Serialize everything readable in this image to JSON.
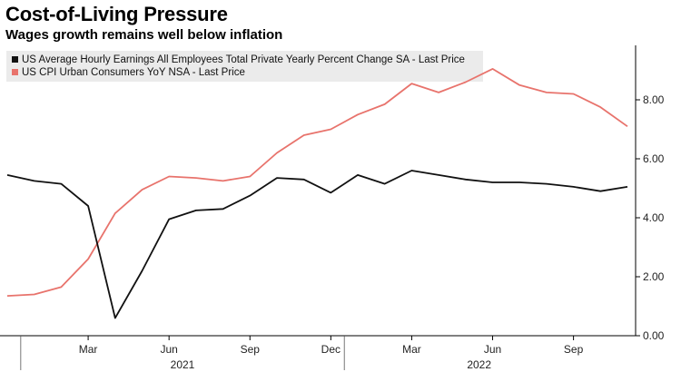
{
  "header": {
    "title": "Cost-of-Living Pressure",
    "subtitle": "Wages growth remains well below inflation"
  },
  "colors": {
    "wages": "#111111",
    "cpi": "#e8736c",
    "legend_bg": "#ebebeb",
    "axis": "#000000"
  },
  "chart_data": {
    "type": "line",
    "title": "Cost-of-Living Pressure",
    "subtitle": "Wages growth remains well below inflation",
    "x": [
      "2020-12",
      "2021-01",
      "2021-02",
      "2021-03",
      "2021-04",
      "2021-05",
      "2021-06",
      "2021-07",
      "2021-08",
      "2021-09",
      "2021-10",
      "2021-11",
      "2021-12",
      "2022-01",
      "2022-02",
      "2022-03",
      "2022-04",
      "2022-05",
      "2022-06",
      "2022-07",
      "2022-08",
      "2022-09",
      "2022-10",
      "2022-11"
    ],
    "series": [
      {
        "name": "US Average Hourly Earnings All Employees Total Private Yearly Percent Change SA - Last Price",
        "color": "#111111",
        "values": [
          5.45,
          5.25,
          5.15,
          4.4,
          0.6,
          2.2,
          3.95,
          4.25,
          4.3,
          4.75,
          5.35,
          5.3,
          4.85,
          5.45,
          5.15,
          5.6,
          5.45,
          5.3,
          5.2,
          5.2,
          5.15,
          5.05,
          4.9,
          5.05
        ]
      },
      {
        "name": "US CPI Urban Consumers YoY NSA - Last Price",
        "color": "#e8736c",
        "values": [
          1.35,
          1.4,
          1.65,
          2.6,
          4.15,
          4.95,
          5.4,
          5.35,
          5.25,
          5.4,
          6.2,
          6.8,
          7.0,
          7.5,
          7.85,
          8.55,
          8.25,
          8.6,
          9.05,
          8.5,
          8.25,
          8.2,
          7.75,
          7.1
        ]
      }
    ],
    "xlim": [
      "2020-12",
      "2022-11"
    ],
    "ylim": [
      0,
      10
    ],
    "yticks": [
      "0.00",
      "2.00",
      "4.00",
      "6.00",
      "8.00"
    ],
    "xticks": [
      "Mar",
      "Jun",
      "Sep",
      "Dec",
      "Mar",
      "Jun",
      "Sep"
    ],
    "year_labels": [
      "2021",
      "2022"
    ],
    "legend": "top-left",
    "grid": false
  }
}
